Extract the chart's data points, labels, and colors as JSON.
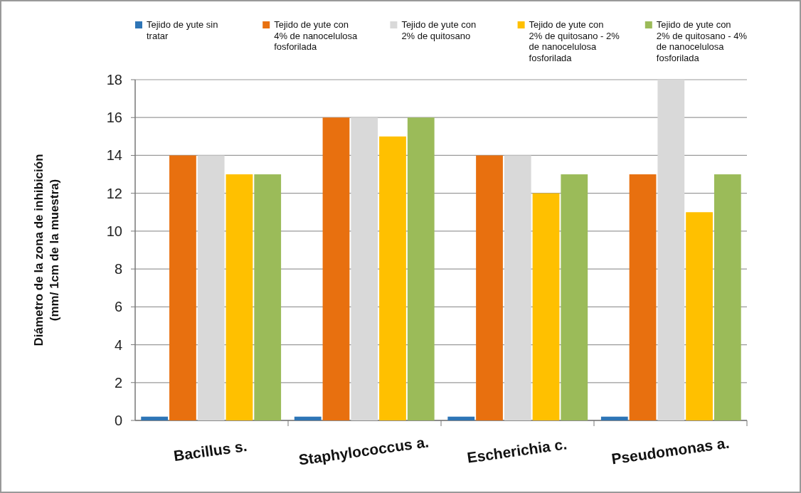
{
  "chart_data": {
    "type": "bar",
    "categories": [
      "Bacillus s.",
      "Staphylococcus a.",
      "Escherichia c.",
      "Pseudomonas a."
    ],
    "ylabel": "Diámetro de la zona de inhibición (mm/ 1cm de la muestra)",
    "series": [
      {
        "name": "Tejido de yute sin tratar",
        "color": "#2e75b6",
        "values": [
          0.2,
          0.2,
          0.2,
          0.2
        ]
      },
      {
        "name": "Tejido de yute con 4% de nanocelulosa fosforilada",
        "color": "#e8700f",
        "values": [
          14,
          16,
          14,
          13
        ]
      },
      {
        "name": "Tejido de yute con 2% de quitosano",
        "color": "#d9d9d9",
        "values": [
          14,
          16,
          14,
          18
        ]
      },
      {
        "name": "Tejido de yute con 2% de quitosano - 2% de nanocelulosa fosforilada",
        "color": "#ffc000",
        "values": [
          13,
          15,
          12,
          11
        ]
      },
      {
        "name": "Tejido de yute con 2% de quitosano - 4% de nanocelulosa fosforilada",
        "color": "#9bbb59",
        "values": [
          13,
          16,
          13,
          13
        ]
      }
    ],
    "ylim": [
      0,
      18
    ],
    "yticks": [
      0,
      2,
      4,
      6,
      8,
      10,
      12,
      14,
      16,
      18
    ],
    "grid": "y",
    "legend": "top"
  }
}
